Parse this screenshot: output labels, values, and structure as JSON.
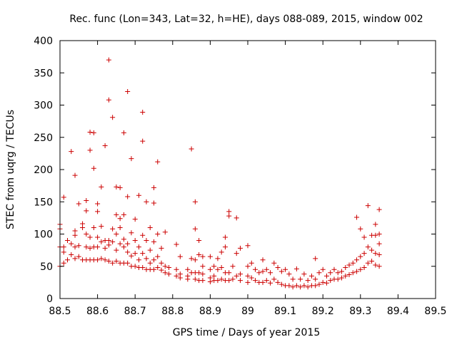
{
  "chart_data": {
    "type": "scatter",
    "title": "Rec. func (Lon=343, Lat=32, h=HE), days 088-089, 2015, window 002",
    "xlabel": "GPS time / Days of year 2015",
    "ylabel": "STEC from uqrg / TECUs",
    "xlim": [
      88.5,
      89.5
    ],
    "ylim": [
      0,
      400
    ],
    "xticks": [
      "88.5",
      "88.6",
      "88.7",
      "88.8",
      "88.9",
      "89",
      "89.1",
      "89.2",
      "89.3",
      "89.4",
      "89.5"
    ],
    "yticks": [
      "0",
      "50",
      "100",
      "150",
      "200",
      "250",
      "300",
      "350",
      "400"
    ],
    "grid": false,
    "marker": "+",
    "color": "#cc0000",
    "points": [
      [
        88.5,
        115
      ],
      [
        88.5,
        108
      ],
      [
        88.5,
        80
      ],
      [
        88.5,
        50
      ],
      [
        88.51,
        157
      ],
      [
        88.51,
        80
      ],
      [
        88.51,
        72
      ],
      [
        88.51,
        55
      ],
      [
        88.52,
        90
      ],
      [
        88.52,
        60
      ],
      [
        88.53,
        228
      ],
      [
        88.53,
        85
      ],
      [
        88.53,
        68
      ],
      [
        88.54,
        191
      ],
      [
        88.54,
        105
      ],
      [
        88.54,
        98
      ],
      [
        88.54,
        80
      ],
      [
        88.54,
        62
      ],
      [
        88.55,
        147
      ],
      [
        88.55,
        82
      ],
      [
        88.55,
        65
      ],
      [
        88.56,
        116
      ],
      [
        88.56,
        110
      ],
      [
        88.56,
        60
      ],
      [
        88.57,
        152
      ],
      [
        88.57,
        136
      ],
      [
        88.57,
        100
      ],
      [
        88.57,
        80
      ],
      [
        88.57,
        60
      ],
      [
        88.58,
        258
      ],
      [
        88.58,
        230
      ],
      [
        88.58,
        95
      ],
      [
        88.58,
        78
      ],
      [
        88.58,
        60
      ],
      [
        88.59,
        257
      ],
      [
        88.59,
        202
      ],
      [
        88.59,
        110
      ],
      [
        88.59,
        80
      ],
      [
        88.59,
        60
      ],
      [
        88.6,
        147
      ],
      [
        88.6,
        135
      ],
      [
        88.6,
        95
      ],
      [
        88.6,
        80
      ],
      [
        88.6,
        60
      ],
      [
        88.61,
        173
      ],
      [
        88.61,
        112
      ],
      [
        88.61,
        88
      ],
      [
        88.61,
        62
      ],
      [
        88.62,
        237
      ],
      [
        88.62,
        90
      ],
      [
        88.62,
        78
      ],
      [
        88.62,
        60
      ],
      [
        88.63,
        370
      ],
      [
        88.63,
        308
      ],
      [
        88.63,
        90
      ],
      [
        88.63,
        83
      ],
      [
        88.63,
        58
      ],
      [
        88.64,
        281
      ],
      [
        88.64,
        108
      ],
      [
        88.64,
        88
      ],
      [
        88.64,
        55
      ],
      [
        88.65,
        173
      ],
      [
        88.65,
        130
      ],
      [
        88.65,
        100
      ],
      [
        88.65,
        75
      ],
      [
        88.65,
        58
      ],
      [
        88.66,
        172
      ],
      [
        88.66,
        124
      ],
      [
        88.66,
        110
      ],
      [
        88.66,
        85
      ],
      [
        88.66,
        55
      ],
      [
        88.67,
        257
      ],
      [
        88.67,
        130
      ],
      [
        88.67,
        92
      ],
      [
        88.67,
        80
      ],
      [
        88.67,
        55
      ],
      [
        88.68,
        321
      ],
      [
        88.68,
        158
      ],
      [
        88.68,
        85
      ],
      [
        88.68,
        72
      ],
      [
        88.68,
        55
      ],
      [
        88.69,
        217
      ],
      [
        88.69,
        102
      ],
      [
        88.69,
        66
      ],
      [
        88.69,
        50
      ],
      [
        88.7,
        123
      ],
      [
        88.7,
        90
      ],
      [
        88.7,
        70
      ],
      [
        88.7,
        50
      ],
      [
        88.71,
        160
      ],
      [
        88.71,
        80
      ],
      [
        88.71,
        60
      ],
      [
        88.71,
        48
      ],
      [
        88.72,
        289
      ],
      [
        88.72,
        244
      ],
      [
        88.72,
        98
      ],
      [
        88.72,
        70
      ],
      [
        88.72,
        48
      ],
      [
        88.73,
        150
      ],
      [
        88.73,
        90
      ],
      [
        88.73,
        62
      ],
      [
        88.73,
        45
      ],
      [
        88.74,
        110
      ],
      [
        88.74,
        75
      ],
      [
        88.74,
        55
      ],
      [
        88.74,
        45
      ],
      [
        88.75,
        172
      ],
      [
        88.75,
        148
      ],
      [
        88.75,
        88
      ],
      [
        88.75,
        60
      ],
      [
        88.75,
        45
      ],
      [
        88.76,
        212
      ],
      [
        88.76,
        100
      ],
      [
        88.76,
        65
      ],
      [
        88.76,
        48
      ],
      [
        88.77,
        78
      ],
      [
        88.77,
        55
      ],
      [
        88.77,
        44
      ],
      [
        88.78,
        103
      ],
      [
        88.78,
        50
      ],
      [
        88.78,
        40
      ],
      [
        88.79,
        48
      ],
      [
        88.79,
        38
      ],
      [
        88.81,
        84
      ],
      [
        88.81,
        45
      ],
      [
        88.81,
        35
      ],
      [
        88.82,
        65
      ],
      [
        88.82,
        38
      ],
      [
        88.82,
        32
      ],
      [
        88.84,
        45
      ],
      [
        88.84,
        35
      ],
      [
        88.84,
        30
      ],
      [
        88.85,
        232
      ],
      [
        88.85,
        62
      ],
      [
        88.85,
        40
      ],
      [
        88.86,
        150
      ],
      [
        88.86,
        108
      ],
      [
        88.86,
        60
      ],
      [
        88.86,
        40
      ],
      [
        88.86,
        30
      ],
      [
        88.87,
        90
      ],
      [
        88.87,
        68
      ],
      [
        88.87,
        40
      ],
      [
        88.87,
        28
      ],
      [
        88.88,
        65
      ],
      [
        88.88,
        50
      ],
      [
        88.88,
        38
      ],
      [
        88.88,
        28
      ],
      [
        88.9,
        65
      ],
      [
        88.9,
        45
      ],
      [
        88.9,
        32
      ],
      [
        88.9,
        26
      ],
      [
        88.91,
        50
      ],
      [
        88.91,
        35
      ],
      [
        88.91,
        28
      ],
      [
        88.92,
        62
      ],
      [
        88.92,
        45
      ],
      [
        88.92,
        28
      ],
      [
        88.93,
        72
      ],
      [
        88.93,
        48
      ],
      [
        88.93,
        30
      ],
      [
        88.94,
        95
      ],
      [
        88.94,
        80
      ],
      [
        88.94,
        40
      ],
      [
        88.94,
        28
      ],
      [
        88.95,
        135
      ],
      [
        88.95,
        128
      ],
      [
        88.95,
        40
      ],
      [
        88.95,
        28
      ],
      [
        88.96,
        50
      ],
      [
        88.96,
        30
      ],
      [
        88.97,
        125
      ],
      [
        88.97,
        70
      ],
      [
        88.97,
        35
      ],
      [
        88.98,
        78
      ],
      [
        88.98,
        38
      ],
      [
        88.98,
        28
      ],
      [
        89.0,
        82
      ],
      [
        89.0,
        50
      ],
      [
        89.0,
        35
      ],
      [
        89.0,
        25
      ],
      [
        89.01,
        55
      ],
      [
        89.01,
        32
      ],
      [
        89.02,
        45
      ],
      [
        89.02,
        28
      ],
      [
        89.03,
        40
      ],
      [
        89.03,
        25
      ],
      [
        89.04,
        60
      ],
      [
        89.04,
        42
      ],
      [
        89.04,
        25
      ],
      [
        89.05,
        45
      ],
      [
        89.05,
        28
      ],
      [
        89.06,
        40
      ],
      [
        89.06,
        24
      ],
      [
        89.07,
        55
      ],
      [
        89.07,
        30
      ],
      [
        89.08,
        48
      ],
      [
        89.08,
        25
      ],
      [
        89.09,
        42
      ],
      [
        89.09,
        22
      ],
      [
        89.1,
        45
      ],
      [
        89.1,
        20
      ],
      [
        89.11,
        38
      ],
      [
        89.11,
        20
      ],
      [
        89.12,
        30
      ],
      [
        89.12,
        18
      ],
      [
        89.13,
        46
      ],
      [
        89.13,
        20
      ],
      [
        89.14,
        30
      ],
      [
        89.14,
        18
      ],
      [
        89.15,
        38
      ],
      [
        89.15,
        20
      ],
      [
        89.16,
        28
      ],
      [
        89.16,
        18
      ],
      [
        89.17,
        35
      ],
      [
        89.17,
        20
      ],
      [
        89.18,
        62
      ],
      [
        89.18,
        30
      ],
      [
        89.18,
        20
      ],
      [
        89.19,
        40
      ],
      [
        89.19,
        22
      ],
      [
        89.2,
        45
      ],
      [
        89.2,
        25
      ],
      [
        89.21,
        35
      ],
      [
        89.21,
        24
      ],
      [
        89.22,
        40
      ],
      [
        89.22,
        28
      ],
      [
        89.23,
        45
      ],
      [
        89.23,
        30
      ],
      [
        89.24,
        40
      ],
      [
        89.24,
        30
      ],
      [
        89.25,
        42
      ],
      [
        89.25,
        32
      ],
      [
        89.26,
        48
      ],
      [
        89.26,
        35
      ],
      [
        89.27,
        52
      ],
      [
        89.27,
        37
      ],
      [
        89.28,
        55
      ],
      [
        89.28,
        40
      ],
      [
        89.29,
        126
      ],
      [
        89.29,
        60
      ],
      [
        89.29,
        42
      ],
      [
        89.3,
        108
      ],
      [
        89.3,
        65
      ],
      [
        89.3,
        45
      ],
      [
        89.31,
        95
      ],
      [
        89.31,
        70
      ],
      [
        89.31,
        48
      ],
      [
        89.32,
        144
      ],
      [
        89.32,
        80
      ],
      [
        89.32,
        55
      ],
      [
        89.33,
        98
      ],
      [
        89.33,
        75
      ],
      [
        89.33,
        58
      ],
      [
        89.34,
        115
      ],
      [
        89.34,
        98
      ],
      [
        89.34,
        70
      ],
      [
        89.34,
        52
      ],
      [
        89.35,
        138
      ],
      [
        89.35,
        100
      ],
      [
        89.35,
        85
      ],
      [
        89.35,
        68
      ],
      [
        89.35,
        50
      ]
    ]
  }
}
